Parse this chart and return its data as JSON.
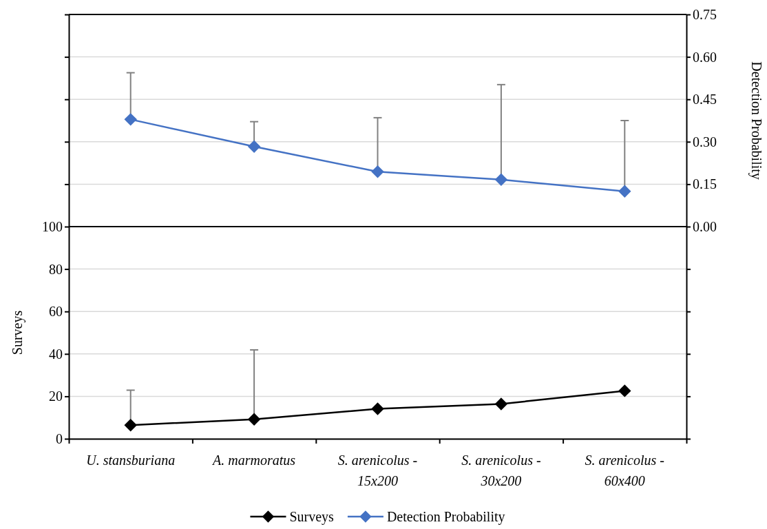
{
  "chart_data": {
    "type": "line",
    "categories": [
      "U. stansburiana",
      "A. marmoratus",
      "S. arenicolus - 15x200",
      "S. arenicolus - 30x200",
      "S. arenicolus - 60x400"
    ],
    "ylabel": "Surveys",
    "y2label": "Detection Probability",
    "ylim": [
      0,
      200
    ],
    "yticks": [
      0,
      20,
      40,
      60,
      80,
      100,
      {
        "value": 120,
        "label": null
      },
      {
        "value": 140,
        "label": null
      },
      {
        "value": 160,
        "label": null
      },
      {
        "value": 180,
        "label": null
      },
      {
        "value": 200,
        "label": null
      }
    ],
    "y2lim": [
      -0.75,
      0.75
    ],
    "y2ticks": [
      {
        "value": -0.75,
        "label": null
      },
      {
        "value": -0.6,
        "label": null
      },
      {
        "value": -0.45,
        "label": null
      },
      {
        "value": -0.3,
        "label": null
      },
      {
        "value": -0.15,
        "label": null
      },
      {
        "value": 0,
        "label": "0.00"
      },
      {
        "value": 0.15,
        "label": "0.15"
      },
      {
        "value": 0.3,
        "label": "0.30"
      },
      {
        "value": 0.45,
        "label": "0.45"
      },
      {
        "value": 0.6,
        "label": "0.60"
      },
      {
        "value": 0.75,
        "label": "0.75"
      }
    ],
    "series": [
      {
        "name": "Surveys",
        "color": "#000000",
        "values": [
          6.4,
          9.2,
          14.1,
          16.4,
          22.6
        ],
        "errors": [
          [
            6.4,
            22.9
          ],
          [
            9.2,
            41.9
          ],
          null,
          null,
          null
        ]
      },
      {
        "name": "Detection Probability",
        "color": "#4472c4",
        "axis": "y2",
        "values": [
          0.379,
          0.283,
          0.194,
          0.166,
          0.125
        ],
        "errors": [
          [
            0.379,
            0.544
          ],
          [
            0.283,
            0.371
          ],
          [
            0.194,
            0.385
          ],
          [
            0.166,
            0.502
          ],
          [
            0.125,
            0.375
          ]
        ]
      }
    ],
    "ref_lines": [
      {
        "axis": "y",
        "value": 100,
        "color": "#000000"
      }
    ],
    "marker": "diamond",
    "line_style": "solid",
    "grid": "y",
    "legend": "bottom"
  }
}
